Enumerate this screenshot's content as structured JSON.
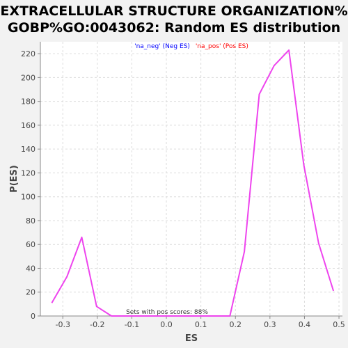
{
  "chart_data": {
    "type": "line",
    "title_lines": [
      "EXTRACELLULAR STRUCTURE ORGANIZATION%",
      "GOBP%GO:0043062: Random ES distribution"
    ],
    "xlabel": "ES",
    "ylabel": "P(ES)",
    "xlim": [
      -0.365,
      0.51
    ],
    "ylim": [
      0,
      230
    ],
    "xticks": [
      -0.3,
      -0.2,
      -0.1,
      0.0,
      0.1,
      0.2,
      0.3,
      0.4,
      0.5
    ],
    "xtick_labels": [
      "-0.3",
      "-0.2",
      "-0.1",
      "0.0",
      "0.1",
      "0.2",
      "0.3",
      "0.4",
      "0.5"
    ],
    "yticks": [
      0,
      20,
      40,
      60,
      80,
      100,
      120,
      140,
      160,
      180,
      200,
      220
    ],
    "ytick_labels": [
      "0",
      "20",
      "40",
      "60",
      "80",
      "100",
      "120",
      "140",
      "160",
      "180",
      "200",
      "220"
    ],
    "grid": true,
    "legend": {
      "placement": "top-center",
      "entries": [
        {
          "label": "'na_neg' (Neg ES)",
          "color": "#0000ff"
        },
        {
          "label": "'na_pos' (Pos ES)",
          "color": "#ff0000"
        }
      ]
    },
    "annotation": "Sets with pos scores: 88%",
    "series": [
      {
        "color": "#ee44ee",
        "points": [
          [
            -0.332,
            11
          ],
          [
            -0.288,
            33
          ],
          [
            -0.245,
            66
          ],
          [
            -0.202,
            8
          ],
          [
            -0.159,
            0
          ],
          [
            -0.115,
            0
          ],
          [
            -0.072,
            0
          ],
          [
            -0.029,
            0
          ],
          [
            0.014,
            0
          ],
          [
            0.057,
            0
          ],
          [
            0.1,
            0
          ],
          [
            0.143,
            0
          ],
          [
            0.184,
            0
          ],
          [
            0.226,
            54
          ],
          [
            0.269,
            186
          ],
          [
            0.312,
            210
          ],
          [
            0.355,
            223
          ],
          [
            0.398,
            127
          ],
          [
            0.441,
            61
          ],
          [
            0.484,
            21
          ]
        ]
      }
    ]
  }
}
